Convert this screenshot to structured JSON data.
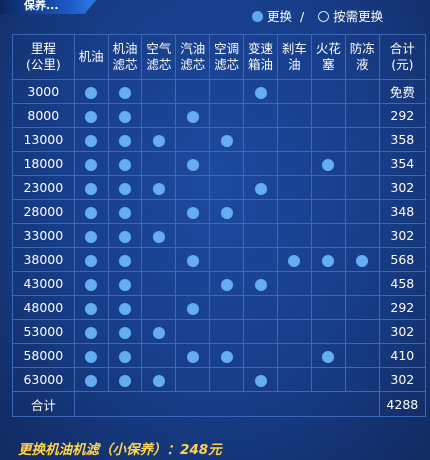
{
  "header": {
    "title_fragment": "保养..."
  },
  "legend": {
    "replace_label": "更换",
    "separator": "/",
    "as_needed_label": "按需更换"
  },
  "table": {
    "mileage_header_line1": "里程",
    "mileage_header_line2": "(公里)",
    "items": [
      {
        "line1": "机油",
        "line2": ""
      },
      {
        "line1": "机油",
        "line2": "滤芯"
      },
      {
        "line1": "空气",
        "line2": "滤芯"
      },
      {
        "line1": "汽油",
        "line2": "滤芯"
      },
      {
        "line1": "空调",
        "line2": "滤芯"
      },
      {
        "line1": "变速",
        "line2": "箱油"
      },
      {
        "line1": "刹车",
        "line2": "油"
      },
      {
        "line1": "火花",
        "line2": "塞"
      },
      {
        "line1": "防冻",
        "line2": "液"
      }
    ],
    "sum_header_line1": "合计",
    "sum_header_line2": "(元)",
    "rows": [
      {
        "mileage": "3000",
        "marks": [
          1,
          1,
          0,
          0,
          0,
          1,
          0,
          0,
          0
        ],
        "cost": "免费"
      },
      {
        "mileage": "8000",
        "marks": [
          1,
          1,
          0,
          1,
          0,
          0,
          0,
          0,
          0
        ],
        "cost": "292"
      },
      {
        "mileage": "13000",
        "marks": [
          1,
          1,
          1,
          0,
          1,
          0,
          0,
          0,
          0
        ],
        "cost": "358"
      },
      {
        "mileage": "18000",
        "marks": [
          1,
          1,
          0,
          1,
          0,
          0,
          0,
          1,
          0
        ],
        "cost": "354"
      },
      {
        "mileage": "23000",
        "marks": [
          1,
          1,
          1,
          0,
          0,
          1,
          0,
          0,
          0
        ],
        "cost": "302"
      },
      {
        "mileage": "28000",
        "marks": [
          1,
          1,
          0,
          1,
          1,
          0,
          0,
          0,
          0
        ],
        "cost": "348"
      },
      {
        "mileage": "33000",
        "marks": [
          1,
          1,
          1,
          0,
          0,
          0,
          0,
          0,
          0
        ],
        "cost": "302"
      },
      {
        "mileage": "38000",
        "marks": [
          1,
          1,
          0,
          1,
          0,
          0,
          1,
          1,
          1
        ],
        "cost": "568"
      },
      {
        "mileage": "43000",
        "marks": [
          1,
          1,
          0,
          0,
          1,
          1,
          0,
          0,
          0
        ],
        "cost": "458"
      },
      {
        "mileage": "48000",
        "marks": [
          1,
          1,
          0,
          1,
          0,
          0,
          0,
          0,
          0
        ],
        "cost": "292"
      },
      {
        "mileage": "53000",
        "marks": [
          1,
          1,
          1,
          0,
          0,
          0,
          0,
          0,
          0
        ],
        "cost": "302"
      },
      {
        "mileage": "58000",
        "marks": [
          1,
          1,
          0,
          1,
          1,
          0,
          0,
          1,
          0
        ],
        "cost": "410"
      },
      {
        "mileage": "63000",
        "marks": [
          1,
          1,
          1,
          0,
          0,
          1,
          0,
          0,
          0
        ],
        "cost": "302"
      }
    ],
    "total_label": "合计",
    "total_value": "4288"
  },
  "footer": {
    "text": "更换机油机滤（小保养）：248元"
  },
  "colors": {
    "background": "#173d88",
    "grid_line": "#3c68b8",
    "mark": "#64adf1",
    "price": "#f2a33a",
    "footer": "#ffd24a"
  }
}
